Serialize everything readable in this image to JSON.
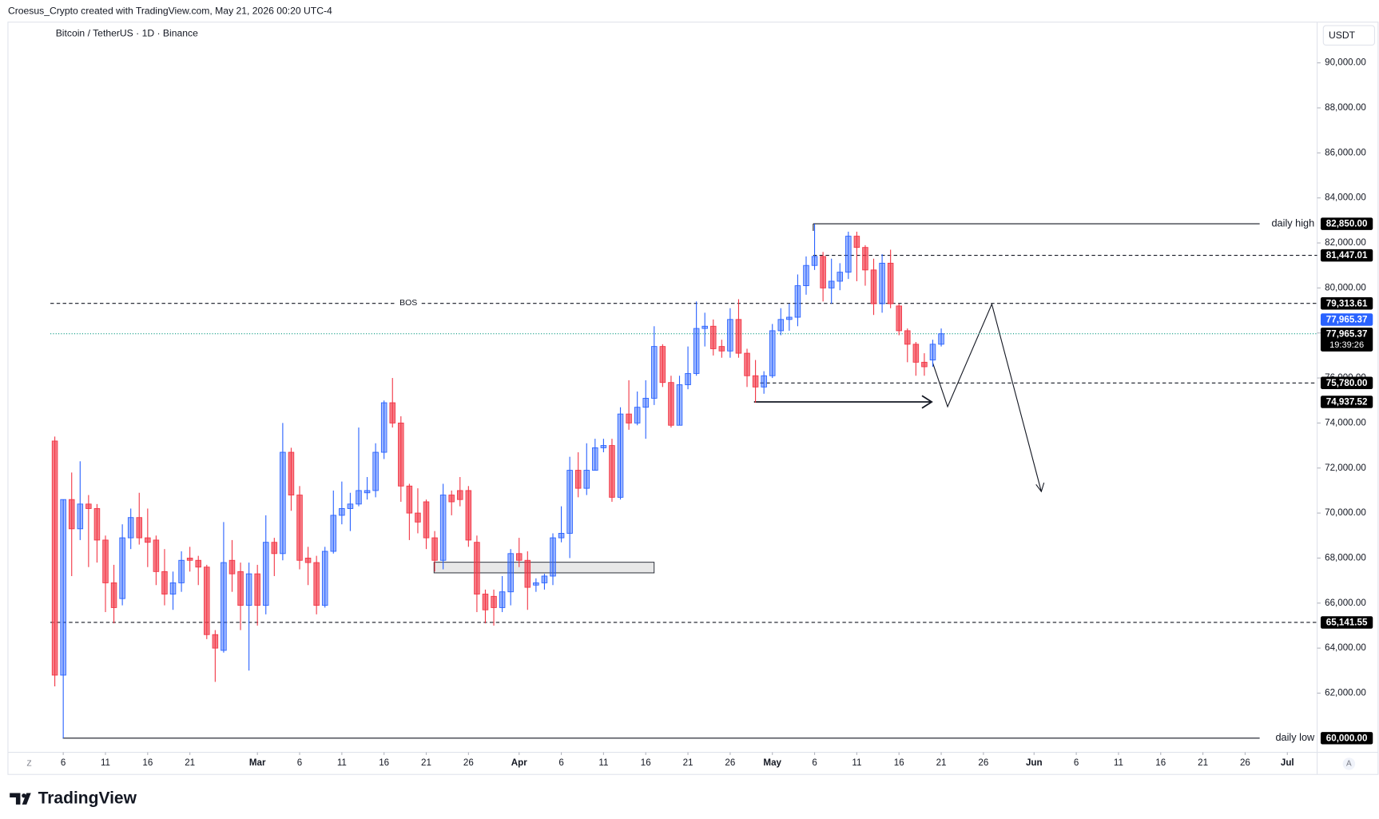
{
  "chart_data": {
    "type": "candlestick",
    "header": "Croesus_Crypto created with TradingView.com, May 21, 2026 00:20 UTC-4",
    "title": "Bitcoin / TetherUS · 1D · Binance",
    "currency": "USDT",
    "brand": "TradingView",
    "buttons": [
      "Z",
      "A"
    ],
    "countdown": "19:39:26",
    "up_color": "#2962ff",
    "down_color": "#f23645",
    "x": [
      "2026-02-05",
      "2026-02-06",
      "2026-02-07",
      "2026-02-08",
      "2026-02-09",
      "2026-02-10",
      "2026-02-11",
      "2026-02-12",
      "2026-02-13",
      "2026-02-14",
      "2026-02-15",
      "2026-02-16",
      "2026-02-17",
      "2026-02-18",
      "2026-02-19",
      "2026-02-20",
      "2026-02-21",
      "2026-02-22",
      "2026-02-23",
      "2026-02-24",
      "2026-02-25",
      "2026-02-26",
      "2026-02-27",
      "2026-02-28",
      "2026-03-01",
      "2026-03-02",
      "2026-03-03",
      "2026-03-04",
      "2026-03-05",
      "2026-03-06",
      "2026-03-07",
      "2026-03-08",
      "2026-03-09",
      "2026-03-10",
      "2026-03-11",
      "2026-03-12",
      "2026-03-13",
      "2026-03-14",
      "2026-03-15",
      "2026-03-16",
      "2026-03-17",
      "2026-03-18",
      "2026-03-19",
      "2026-03-20",
      "2026-03-21",
      "2026-03-22",
      "2026-03-23",
      "2026-03-24",
      "2026-03-25",
      "2026-03-26",
      "2026-03-27",
      "2026-03-28",
      "2026-03-29",
      "2026-03-30",
      "2026-03-31",
      "2026-04-01",
      "2026-04-02",
      "2026-04-03",
      "2026-04-04",
      "2026-04-05",
      "2026-04-06",
      "2026-04-07",
      "2026-04-08",
      "2026-04-09",
      "2026-04-10",
      "2026-04-11",
      "2026-04-12",
      "2026-04-13",
      "2026-04-14",
      "2026-04-15",
      "2026-04-16",
      "2026-04-17",
      "2026-04-18",
      "2026-04-19",
      "2026-04-20",
      "2026-04-21",
      "2026-04-22",
      "2026-04-23",
      "2026-04-24",
      "2026-04-25",
      "2026-04-26",
      "2026-04-27",
      "2026-04-28",
      "2026-04-29",
      "2026-04-30",
      "2026-05-01",
      "2026-05-02",
      "2026-05-03",
      "2026-05-04",
      "2026-05-05",
      "2026-05-06",
      "2026-05-07",
      "2026-05-08",
      "2026-05-09",
      "2026-05-10",
      "2026-05-11",
      "2026-05-12",
      "2026-05-13",
      "2026-05-14",
      "2026-05-15",
      "2026-05-16",
      "2026-05-17",
      "2026-05-18",
      "2026-05-19",
      "2026-05-20",
      "2026-05-21"
    ],
    "open": [
      73200,
      62800,
      70600,
      69300,
      70400,
      70200,
      68800,
      66900,
      66200,
      68900,
      69800,
      68900,
      68800,
      67400,
      66400,
      66900,
      68000,
      67900,
      67600,
      64600,
      63900,
      67900,
      67400,
      65900,
      67300,
      65900,
      68700,
      68200,
      72700,
      70800,
      68000,
      67800,
      65900,
      68300,
      69900,
      70200,
      70400,
      70900,
      71000,
      72700,
      74900,
      74000,
      71200,
      70000,
      70500,
      68900,
      67900,
      70800,
      71000,
      71000,
      68700,
      66400,
      66300,
      65800,
      66500,
      68200,
      67900,
      66800,
      66900,
      67200,
      68900,
      69100,
      71900,
      71100,
      71900,
      72900,
      73000,
      70700,
      74400,
      74000,
      74700,
      75100,
      77400,
      75800,
      73900,
      75700,
      76200,
      78200,
      78300,
      77400,
      77200,
      78600,
      77100,
      76100,
      75600,
      76100,
      78100,
      78600,
      78700,
      80100,
      81000,
      81400,
      80000,
      80300,
      80700,
      82300,
      81800,
      80800,
      79300,
      81100,
      79200,
      78100,
      77500,
      76700,
      76800,
      77500
    ],
    "high": [
      73400,
      70600,
      71800,
      72300,
      70800,
      70400,
      69000,
      67700,
      69500,
      70200,
      70900,
      70200,
      69000,
      68400,
      67400,
      68300,
      68500,
      68100,
      67700,
      64800,
      69600,
      68800,
      67800,
      67800,
      67700,
      69900,
      68900,
      74000,
      72900,
      71200,
      68500,
      68100,
      68500,
      71000,
      71400,
      70900,
      73800,
      71600,
      73100,
      75000,
      76000,
      74300,
      71300,
      71100,
      70600,
      69200,
      71300,
      71000,
      71600,
      71200,
      69000,
      66600,
      66600,
      67200,
      68400,
      68900,
      68300,
      67100,
      67300,
      69100,
      70300,
      72500,
      72700,
      73100,
      73300,
      73300,
      73300,
      74700,
      75900,
      75400,
      75900,
      78300,
      77500,
      76100,
      76100,
      77400,
      79400,
      78900,
      78600,
      77700,
      79100,
      79500,
      77300,
      76800,
      76300,
      78400,
      79100,
      79300,
      80600,
      81400,
      82850,
      81600,
      81300,
      81100,
      82500,
      82500,
      81900,
      81300,
      81500,
      81700,
      79300,
      78200,
      77600,
      77100,
      77700,
      78200
    ],
    "low": [
      62300,
      60000,
      67200,
      68800,
      67600,
      67800,
      65600,
      65100,
      65900,
      68400,
      68600,
      67600,
      66800,
      65900,
      65700,
      66500,
      67400,
      66800,
      64400,
      62500,
      63800,
      66500,
      64800,
      63000,
      65000,
      65500,
      67200,
      67900,
      70100,
      67500,
      66800,
      65500,
      65800,
      68200,
      69500,
      69200,
      70300,
      70600,
      70700,
      72400,
      73800,
      70500,
      68800,
      69100,
      68400,
      67400,
      67500,
      69900,
      70300,
      68500,
      65600,
      65100,
      65000,
      65600,
      65900,
      67600,
      65700,
      66500,
      66600,
      66800,
      68700,
      68000,
      70700,
      70800,
      71900,
      72700,
      70500,
      70600,
      73700,
      73900,
      73300,
      74800,
      75600,
      73800,
      73900,
      75500,
      76100,
      77400,
      77000,
      76900,
      76900,
      76900,
      75600,
      74900,
      75300,
      76000,
      77900,
      78100,
      78300,
      79700,
      80800,
      79400,
      79300,
      79900,
      80400,
      80300,
      80100,
      78800,
      78900,
      79100,
      77900,
      76700,
      76100,
      76100,
      76500,
      77400
    ],
    "close": [
      62800,
      70600,
      69300,
      70400,
      70200,
      68800,
      66900,
      65800,
      68900,
      69800,
      68900,
      68700,
      67400,
      66400,
      66900,
      67900,
      67900,
      67600,
      64600,
      64000,
      67800,
      67300,
      65900,
      67300,
      65900,
      68700,
      68200,
      72700,
      70800,
      67900,
      67800,
      65900,
      68300,
      69900,
      70200,
      70400,
      71000,
      71000,
      72700,
      74900,
      74000,
      71200,
      70000,
      69600,
      68900,
      67900,
      70800,
      70500,
      70600,
      68800,
      66400,
      65700,
      65800,
      66500,
      68200,
      67900,
      66700,
      66900,
      67200,
      68900,
      69100,
      71900,
      71100,
      71900,
      72900,
      73000,
      70700,
      74400,
      74000,
      74700,
      75100,
      77400,
      75800,
      73900,
      75700,
      76200,
      78200,
      78300,
      77300,
      77200,
      78600,
      77100,
      76100,
      75600,
      76100,
      78100,
      78600,
      78700,
      80100,
      81000,
      81400,
      80000,
      80300,
      80700,
      82300,
      81800,
      80800,
      79300,
      81100,
      79300,
      78100,
      77500,
      76700,
      76500,
      77500,
      77965.37
    ],
    "ylim": [
      59370,
      91810
    ],
    "yticks": [
      {
        "value": 62000,
        "label": "62,000.00"
      },
      {
        "value": 64000,
        "label": "64,000.00"
      },
      {
        "value": 66000,
        "label": "66,000.00"
      },
      {
        "value": 68000,
        "label": "68,000.00"
      },
      {
        "value": 70000,
        "label": "70,000.00"
      },
      {
        "value": 72000,
        "label": "72,000.00"
      },
      {
        "value": 74000,
        "label": "74,000.00"
      },
      {
        "value": 76000,
        "label": "76,000.00"
      },
      {
        "value": 78000,
        "label": "78,000.00"
      },
      {
        "value": 80000,
        "label": "80,000.00"
      },
      {
        "value": 82000,
        "label": "82,000.00"
      },
      {
        "value": 84000,
        "label": "84,000.00"
      },
      {
        "value": 86000,
        "label": "86,000.00"
      },
      {
        "value": 88000,
        "label": "88,000.00"
      },
      {
        "value": 90000,
        "label": "90,000.00"
      }
    ],
    "xticks": [
      {
        "value": "2026-02-06",
        "label": "6"
      },
      {
        "value": "2026-02-11",
        "label": "11"
      },
      {
        "value": "2026-02-16",
        "label": "16"
      },
      {
        "value": "2026-02-21",
        "label": "21"
      },
      {
        "value": "2026-03-01",
        "label": "Mar"
      },
      {
        "value": "2026-03-06",
        "label": "6"
      },
      {
        "value": "2026-03-11",
        "label": "11"
      },
      {
        "value": "2026-03-16",
        "label": "16"
      },
      {
        "value": "2026-03-21",
        "label": "21"
      },
      {
        "value": "2026-03-26",
        "label": "26"
      },
      {
        "value": "2026-04-01",
        "label": "Apr"
      },
      {
        "value": "2026-04-06",
        "label": "6"
      },
      {
        "value": "2026-04-11",
        "label": "11"
      },
      {
        "value": "2026-04-16",
        "label": "16"
      },
      {
        "value": "2026-04-21",
        "label": "21"
      },
      {
        "value": "2026-04-26",
        "label": "26"
      },
      {
        "value": "2026-05-01",
        "label": "May"
      },
      {
        "value": "2026-05-06",
        "label": "6"
      },
      {
        "value": "2026-05-11",
        "label": "11"
      },
      {
        "value": "2026-05-16",
        "label": "16"
      },
      {
        "value": "2026-05-21",
        "label": "21"
      },
      {
        "value": "2026-05-26",
        "label": "26"
      },
      {
        "value": "2026-06-01",
        "label": "Jun"
      },
      {
        "value": "2026-06-06",
        "label": "6"
      },
      {
        "value": "2026-06-11",
        "label": "11"
      },
      {
        "value": "2026-06-16",
        "label": "16"
      },
      {
        "value": "2026-06-21",
        "label": "21"
      },
      {
        "value": "2026-06-26",
        "label": "26"
      },
      {
        "value": "2026-07-01",
        "label": "Jul"
      }
    ],
    "levels": [
      {
        "value": 82850,
        "label": "82,850.00",
        "text": "daily high",
        "style": "solid"
      },
      {
        "value": 81447.01,
        "label": "81,447.01",
        "style": "dashed"
      },
      {
        "value": 79313.61,
        "label": "79,313.61",
        "text": "BOS",
        "style": "dashed"
      },
      {
        "value": 75780,
        "label": "75,780.00",
        "style": "dashed"
      },
      {
        "value": 74937.52,
        "label": "74,937.52",
        "style": "arrow"
      },
      {
        "value": 65141.55,
        "label": "65,141.55",
        "style": "dashed"
      },
      {
        "value": 60000,
        "label": "60,000.00",
        "text": "daily low",
        "style": "solid"
      }
    ],
    "last_price": {
      "value": 77965.37,
      "label": "77,965.37",
      "color": "#2962ff",
      "line_color": "#089981"
    }
  }
}
